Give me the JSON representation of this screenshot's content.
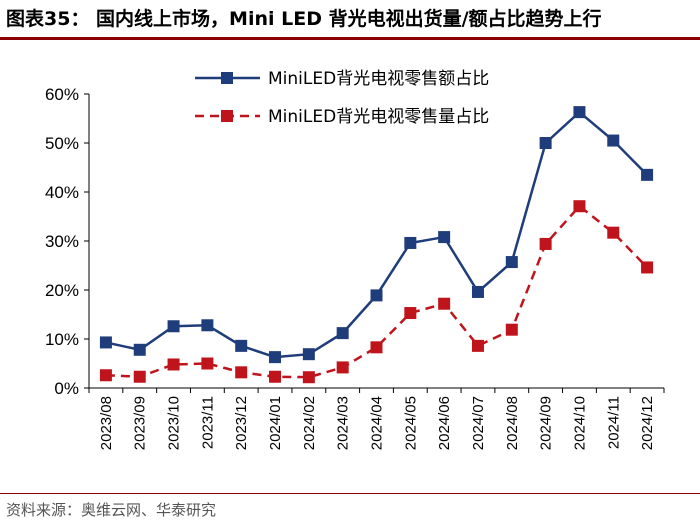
{
  "figure": {
    "title": "图表35：  国内线上市场，Mini LED 背光电视出货量/额占比趋势上行",
    "source": "资料来源：奥维云网、华泰研究"
  },
  "chart_data": {
    "type": "line",
    "categories": [
      "2023/08",
      "2023/09",
      "2023/10",
      "2023/11",
      "2023/12",
      "2024/01",
      "2024/02",
      "2024/03",
      "2024/04",
      "2024/05",
      "2024/06",
      "2024/07",
      "2024/08",
      "2024/09",
      "2024/10",
      "2024/11",
      "2024/12"
    ],
    "ylim": [
      0,
      60
    ],
    "yticks": [
      "0%",
      "10%",
      "20%",
      "30%",
      "40%",
      "50%",
      "60%"
    ],
    "legend_position": "top",
    "grid": false,
    "series": [
      {
        "name": "MiniLED背光电视零售额占比",
        "color": "#1f3d7a",
        "line_style": "solid",
        "marker": "square",
        "values": [
          9.3,
          7.8,
          12.6,
          12.8,
          8.6,
          6.3,
          6.9,
          11.2,
          18.9,
          29.6,
          30.8,
          19.6,
          25.7,
          50.0,
          56.3,
          50.5,
          43.5
        ]
      },
      {
        "name": "MiniLED背光电视零售量占比",
        "color": "#c0141c",
        "line_style": "dashed",
        "marker": "square",
        "values": [
          2.6,
          2.3,
          4.8,
          5.0,
          3.2,
          2.3,
          2.2,
          4.2,
          8.3,
          15.3,
          17.2,
          8.6,
          11.9,
          29.4,
          37.1,
          31.7,
          24.6
        ]
      }
    ]
  }
}
